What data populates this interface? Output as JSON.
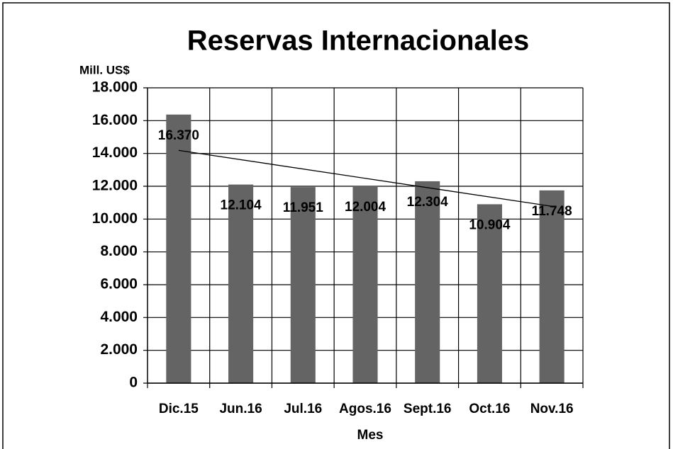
{
  "chart_data": {
    "type": "bar",
    "title": "Reservas Internacionales",
    "y_label": "Mill. US$",
    "x_label": "Mes",
    "categories": [
      "Dic.15",
      "Jun.16",
      "Jul.16",
      "Agos.16",
      "Sept.16",
      "Oct.16",
      "Nov.16"
    ],
    "values": [
      16370,
      12104,
      11951,
      12004,
      12304,
      10904,
      11748
    ],
    "value_labels": [
      "16.370",
      "12.104",
      "11.951",
      "12.004",
      "12.304",
      "10.904",
      "11.748"
    ],
    "color": "#646464",
    "ylim": [
      0,
      18000
    ],
    "yticks": [
      0,
      {
        "value": 2000,
        "label": "2.000"
      },
      {
        "value": 4000,
        "label": "4.000"
      },
      {
        "value": 6000,
        "label": "6.000"
      },
      {
        "value": 8000,
        "label": "8.000"
      },
      {
        "value": 10000,
        "label": "10.000"
      },
      {
        "value": 12000,
        "label": "12.000"
      },
      {
        "value": 14000,
        "label": "14.000"
      },
      {
        "value": 16000,
        "label": "16.000"
      },
      {
        "value": 18000,
        "label": "18.000"
      }
    ],
    "grid": true,
    "trendline": true
  }
}
